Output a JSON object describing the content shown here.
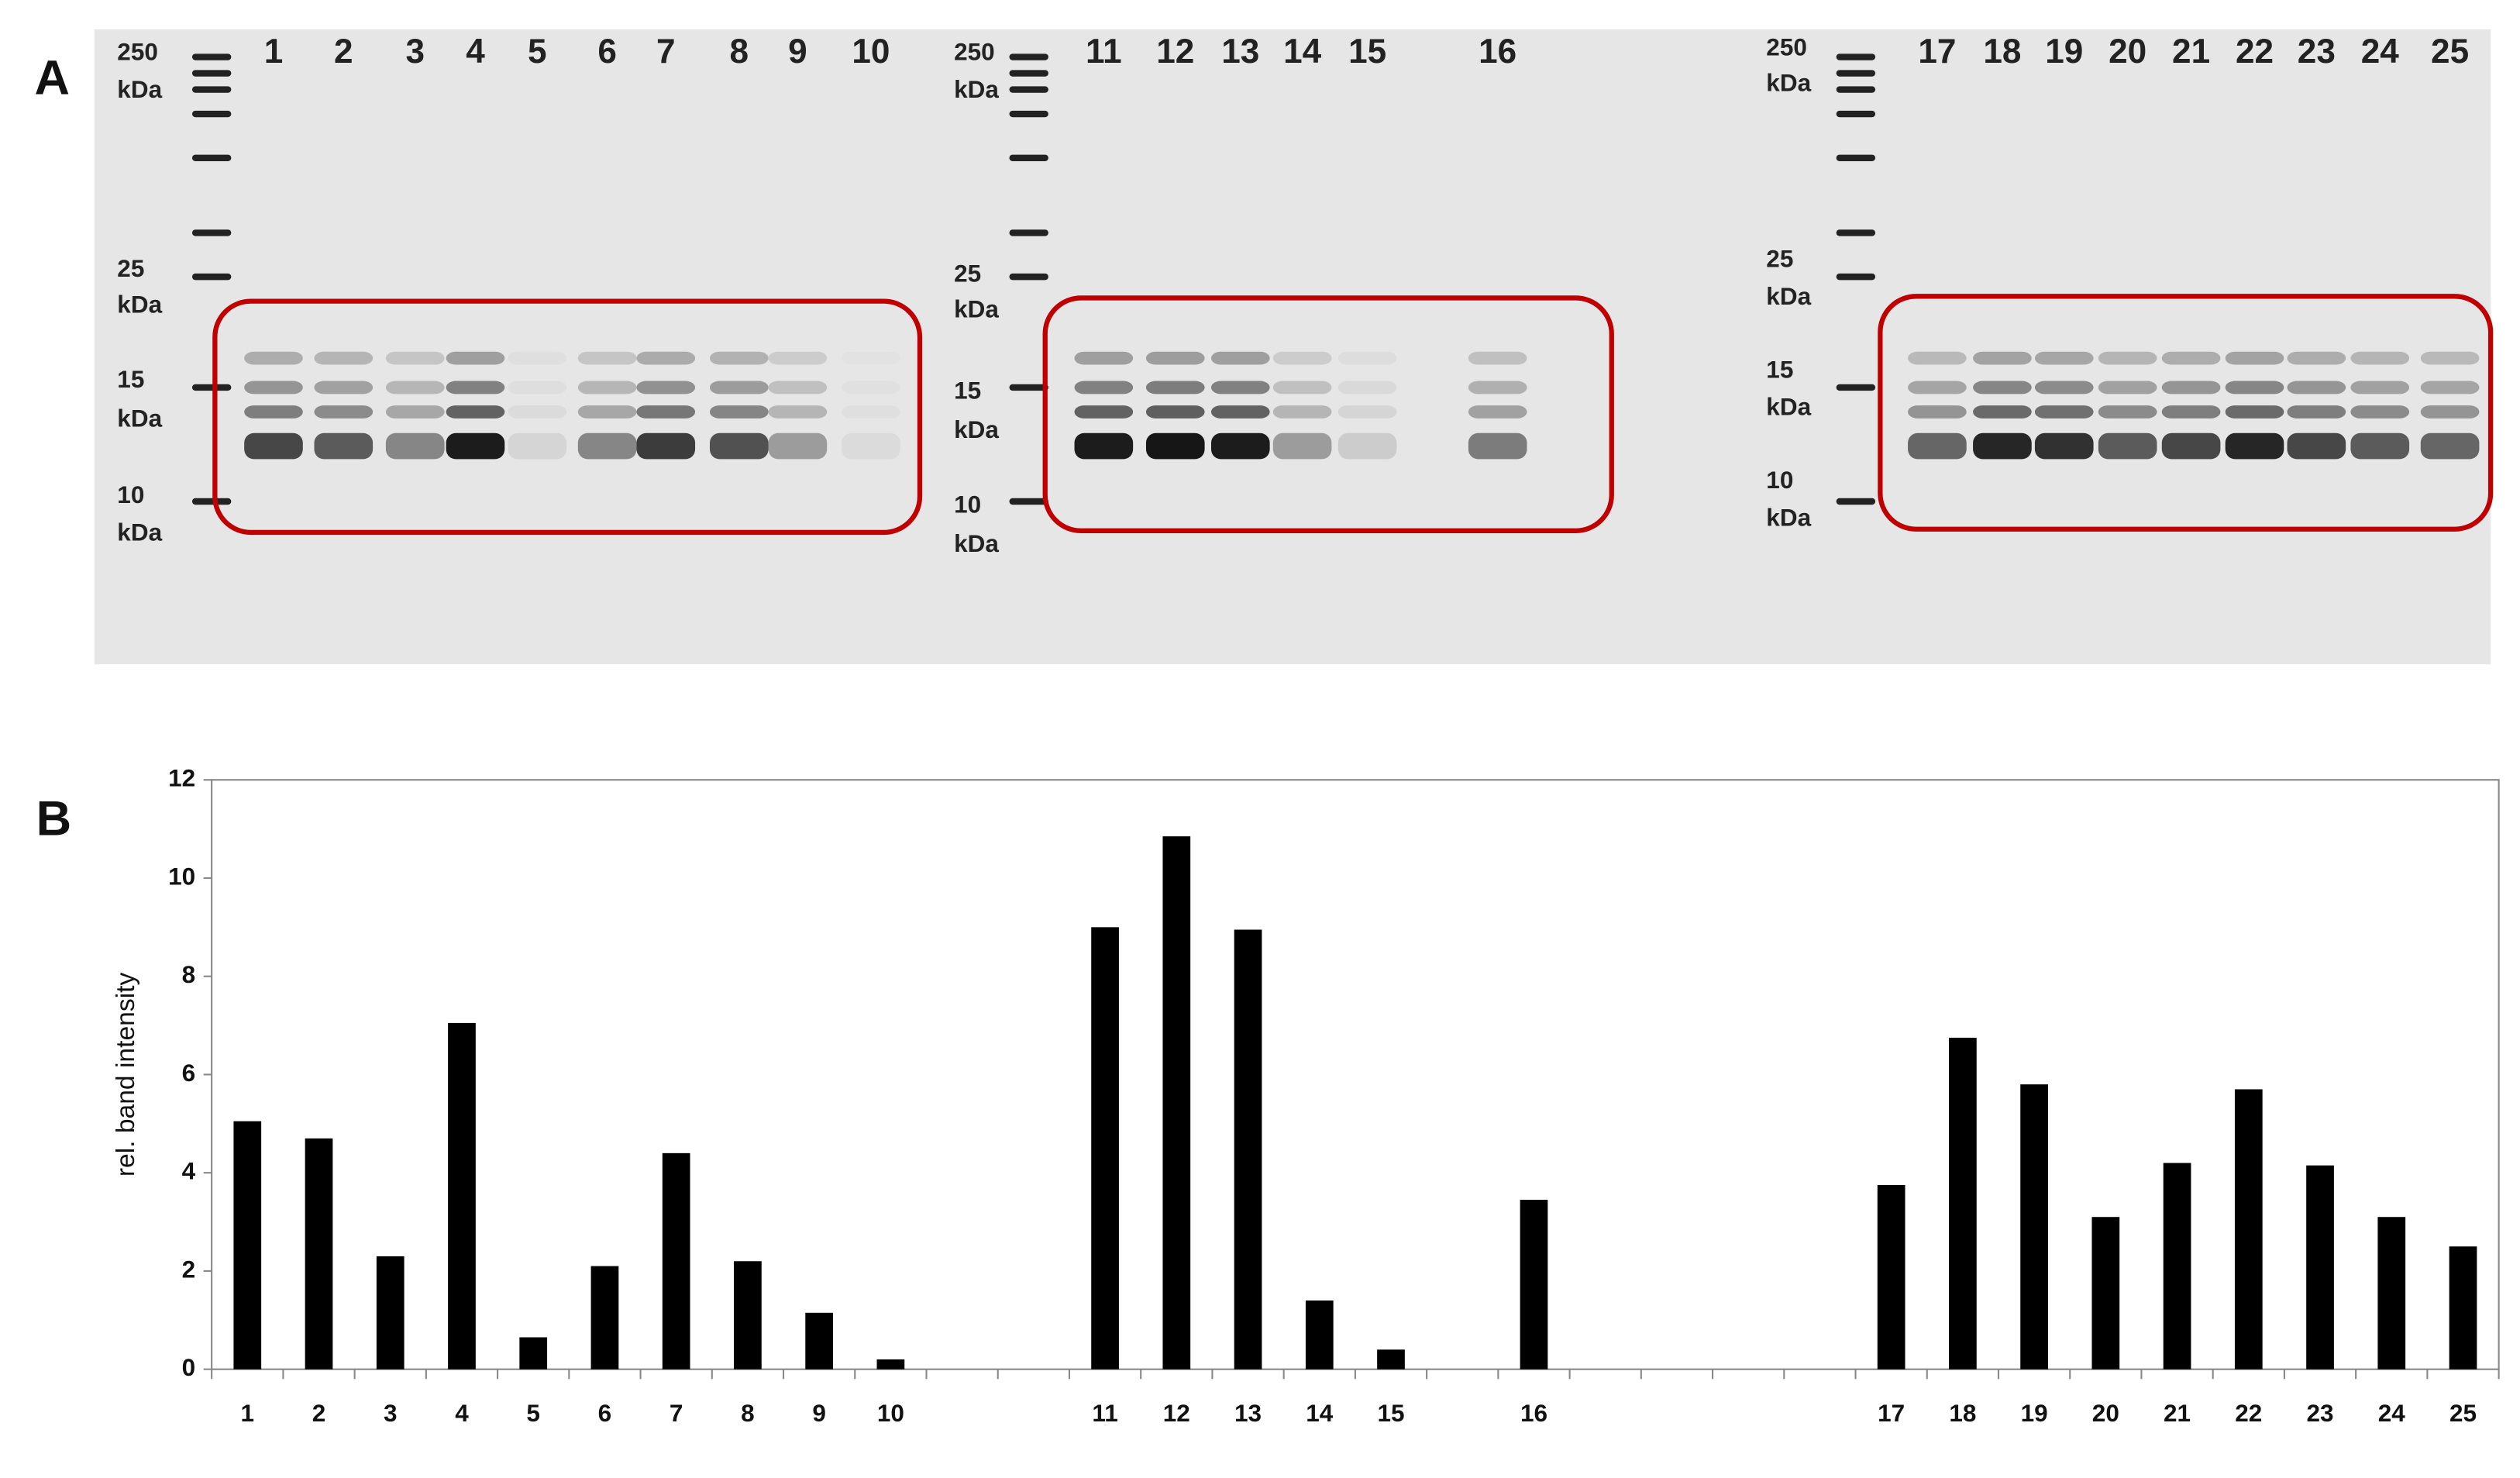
{
  "panel_a": {
    "label": "A",
    "gels": [
      {
        "markers": [
          [
            "250",
            "kDa"
          ],
          [
            "25",
            "kDa"
          ],
          [
            "15",
            "kDa"
          ],
          [
            "10",
            "kDa"
          ]
        ],
        "lanes": [
          "1",
          "2",
          "3",
          "4",
          "5",
          "6",
          "7",
          "8",
          "9",
          "10"
        ]
      },
      {
        "markers": [
          [
            "250",
            "kDa"
          ],
          [
            "25",
            "kDa"
          ],
          [
            "15",
            "kDa"
          ],
          [
            "10",
            "kDa"
          ]
        ],
        "lanes": [
          "11",
          "12",
          "13",
          "14",
          "15",
          "16"
        ]
      },
      {
        "markers": [
          [
            "250",
            "kDa"
          ],
          [
            "25",
            "kDa"
          ],
          [
            "15",
            "kDa"
          ],
          [
            "10",
            "kDa"
          ]
        ],
        "lanes": [
          "17",
          "18",
          "19",
          "20",
          "21",
          "22",
          "23",
          "24",
          "25"
        ]
      }
    ]
  },
  "panel_b": {
    "label": "B"
  },
  "chart_data": {
    "type": "bar",
    "ylabel": "rel. band intensity",
    "color": "#000000",
    "categories": [
      "1",
      "2",
      "3",
      "4",
      "5",
      "6",
      "7",
      "8",
      "9",
      "10",
      null,
      null,
      "11",
      "12",
      "13",
      "14",
      "15",
      null,
      "16",
      null,
      null,
      null,
      null,
      "17",
      "18",
      "19",
      "20",
      "21",
      "22",
      "23",
      "24",
      "25"
    ],
    "values": [
      5.05,
      4.7,
      2.3,
      7.05,
      0.65,
      2.1,
      4.4,
      2.2,
      1.15,
      0.2,
      null,
      null,
      9.0,
      10.85,
      8.95,
      1.4,
      0.4,
      null,
      3.45,
      null,
      null,
      null,
      null,
      3.75,
      6.75,
      5.8,
      3.1,
      4.2,
      5.7,
      4.15,
      3.1,
      2.5
    ],
    "ylim": [
      0,
      12
    ],
    "yticks": [
      0,
      2,
      4,
      6,
      8,
      10,
      12
    ],
    "grid": false
  }
}
